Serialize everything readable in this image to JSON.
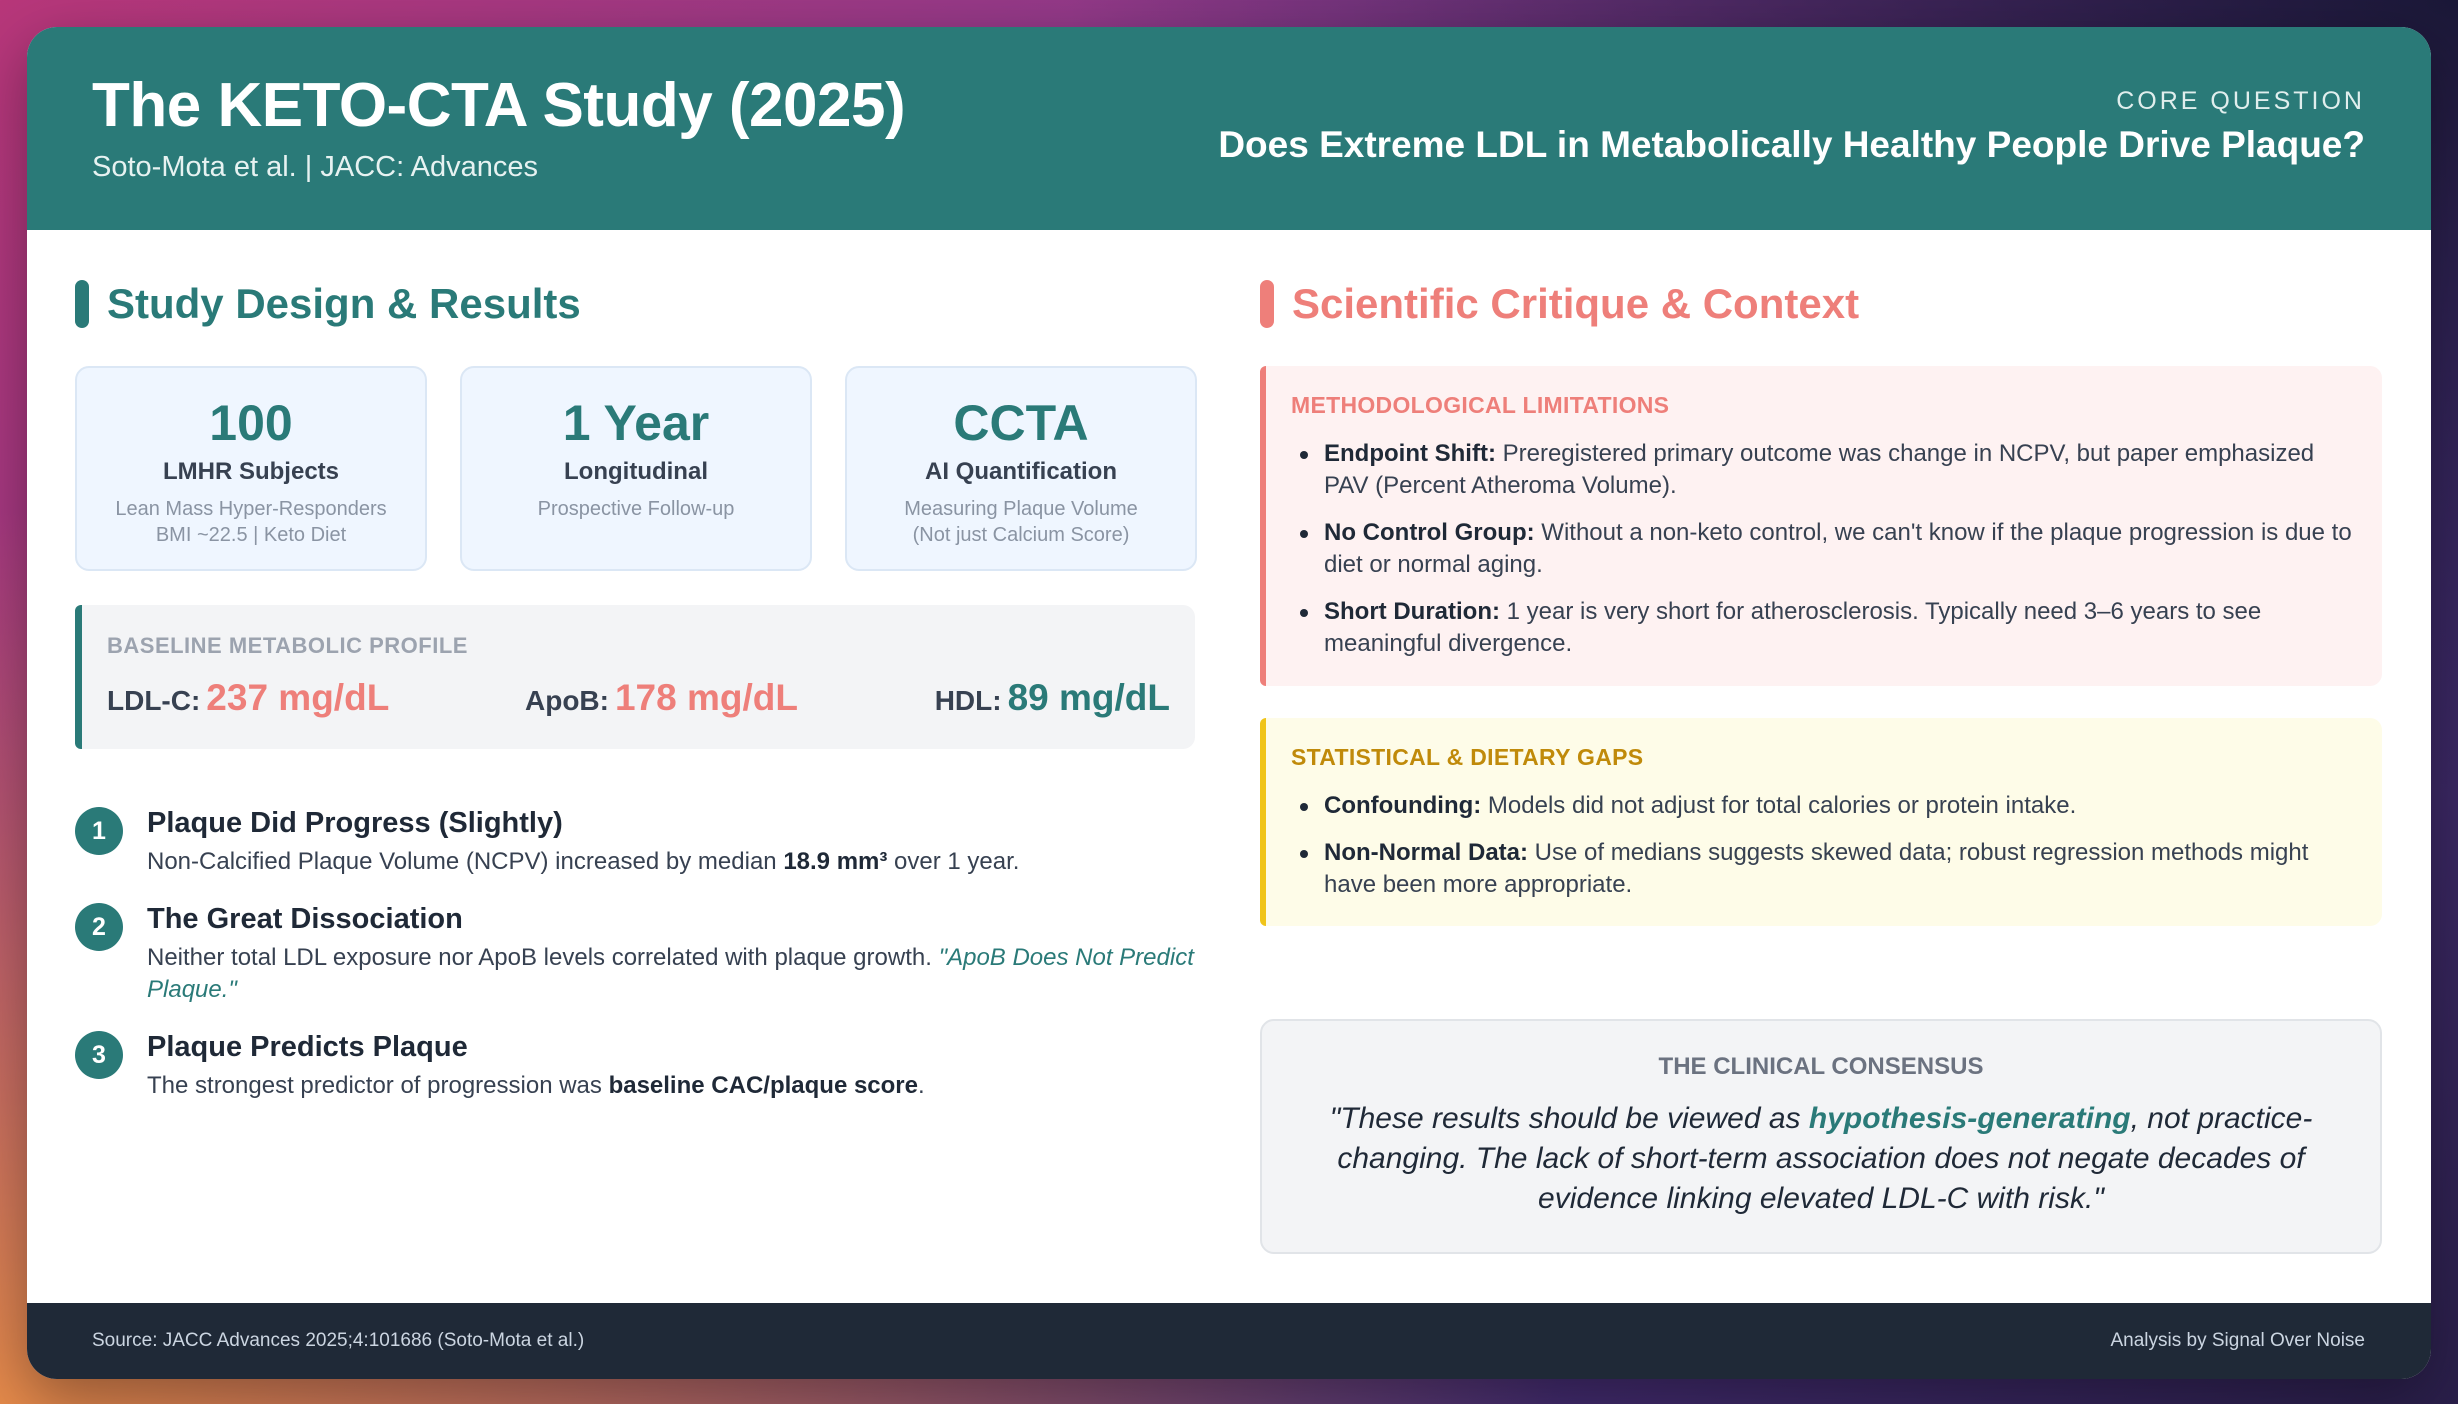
{
  "header": {
    "title": "The KETO-CTA Study (2025)",
    "subtitle": "Soto-Mota et al. | JACC: Advances",
    "core_label": "CORE QUESTION",
    "core_question": "Does Extreme LDL in Metabolically Healthy People Drive Plaque?"
  },
  "left": {
    "heading": "Study Design & Results",
    "stats": [
      {
        "value": "100",
        "label": "LMHR Subjects",
        "desc1": "Lean Mass Hyper-Responders",
        "desc2": "BMI ~22.5 | Keto Diet"
      },
      {
        "value": "1 Year",
        "label": "Longitudinal",
        "desc1": "Prospective Follow-up",
        "desc2": ""
      },
      {
        "value": "CCTA",
        "label": "AI Quantification",
        "desc1": "Measuring Plaque Volume",
        "desc2": "(Not just Calcium Score)"
      }
    ],
    "baseline": {
      "label": "BASELINE METABOLIC PROFILE",
      "ldl_label": "LDL-C:",
      "ldl_value": "237 mg/dL",
      "apob_label": "ApoB:",
      "apob_value": "178 mg/dL",
      "hdl_label": "HDL:",
      "hdl_value": "89 mg/dL"
    },
    "findings": [
      {
        "num": "1",
        "title": "Plaque Did Progress (Slightly)",
        "pre": "Non-Calcified Plaque Volume (NCPV) increased by median ",
        "bold": "18.9 mm³",
        "post": " over 1 year."
      },
      {
        "num": "2",
        "title": "The Great Dissociation",
        "pre": "Neither total LDL exposure nor ApoB levels correlated with plaque growth. ",
        "italic": "\"ApoB Does Not Predict Plaque.\""
      },
      {
        "num": "3",
        "title": "Plaque Predicts Plaque",
        "pre": "The strongest predictor of progression was ",
        "bold": "baseline CAC/plaque score",
        "post": "."
      }
    ]
  },
  "right": {
    "heading": "Scientific Critique & Context",
    "methodological": {
      "label": "METHODOLOGICAL LIMITATIONS",
      "items": [
        {
          "bold": "Endpoint Shift:",
          "text": " Preregistered primary outcome was change in NCPV, but paper emphasized PAV (Percent Atheroma Volume)."
        },
        {
          "bold": "No Control Group:",
          "text": " Without a non-keto control, we can't know if the plaque progression is due to diet or normal aging."
        },
        {
          "bold": "Short Duration:",
          "text": " 1 year is very short for atherosclerosis. Typically need 3–6 years to see meaningful divergence."
        }
      ]
    },
    "statistical": {
      "label": "STATISTICAL & DIETARY GAPS",
      "items": [
        {
          "bold": "Confounding:",
          "text": " Models did not adjust for total calories or protein intake."
        },
        {
          "bold": "Non-Normal Data:",
          "text": " Use of medians suggests skewed data; robust regression methods might have been more appropriate."
        }
      ]
    },
    "consensus": {
      "label": "THE CLINICAL CONSENSUS",
      "pre": "\"These results should be viewed as ",
      "highlight": "hypothesis-generating",
      "post": ", not practice-changing. The lack of short-term association does not negate decades of evidence linking elevated LDL-C with risk.\""
    }
  },
  "footer": {
    "source": "Source: JACC Advances 2025;4:101686 (Soto-Mota et al.)",
    "credit": "Analysis by Signal Over Noise"
  },
  "colors": {
    "teal": "#2a7a78",
    "coral": "#ee7f7a",
    "amber": "#f0c419",
    "footer_bg": "#1f2937"
  }
}
